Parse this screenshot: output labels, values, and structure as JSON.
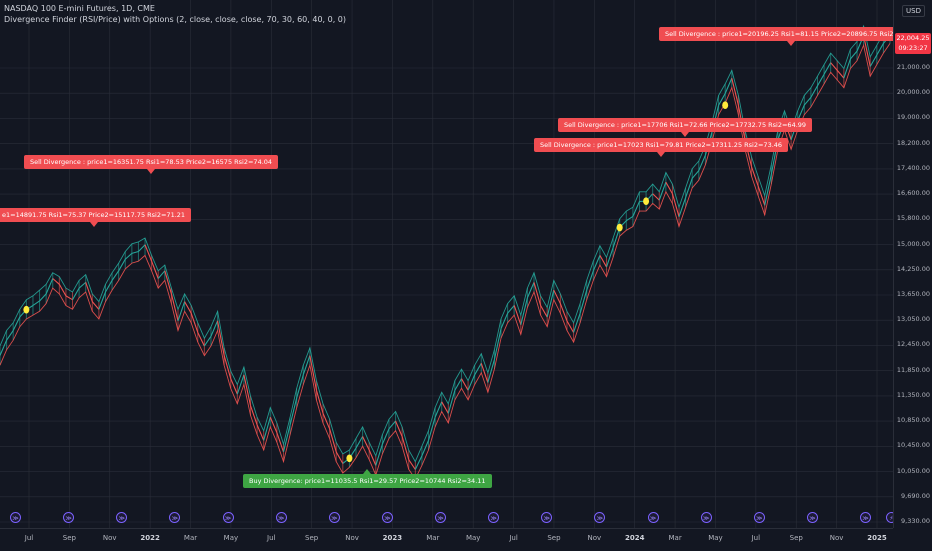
{
  "header": {
    "symbol_line": "NASDAQ 100 E-mini Futures, 1D, CME",
    "indicator_line": "Divergence Finder (RSI/Price) with Options (2, close, close, close, 70, 30, 60, 40, 0, 0)"
  },
  "price_axis": {
    "currency": "USD",
    "current_price": "22,004.25",
    "countdown": "09:23:27",
    "labels": [
      "21,000.00",
      "20,000.00",
      "19,000.00",
      "18,200.00",
      "17,400.00",
      "16,600.00",
      "15,800.00",
      "15,000.00",
      "14,250.00",
      "13,650.00",
      "13,050.00",
      "12,450.00",
      "11,850.00",
      "11,350.00",
      "10,850.00",
      "10,450.00",
      "10,050.00",
      "9,690.00",
      "9,330.00"
    ]
  },
  "time_axis": {
    "labels": [
      {
        "text": "Jul",
        "year": false
      },
      {
        "text": "Sep",
        "year": false
      },
      {
        "text": "Nov",
        "year": false
      },
      {
        "text": "2022",
        "year": true
      },
      {
        "text": "Mar",
        "year": false
      },
      {
        "text": "May",
        "year": false
      },
      {
        "text": "Jul",
        "year": false
      },
      {
        "text": "Sep",
        "year": false
      },
      {
        "text": "Nov",
        "year": false
      },
      {
        "text": "2023",
        "year": true
      },
      {
        "text": "Mar",
        "year": false
      },
      {
        "text": "May",
        "year": false
      },
      {
        "text": "Jul",
        "year": false
      },
      {
        "text": "Sep",
        "year": false
      },
      {
        "text": "Nov",
        "year": false
      },
      {
        "text": "2024",
        "year": true
      },
      {
        "text": "Mar",
        "year": false
      },
      {
        "text": "May",
        "year": false
      },
      {
        "text": "Jul",
        "year": false
      },
      {
        "text": "Sep",
        "year": false
      },
      {
        "text": "Nov",
        "year": false
      },
      {
        "text": "2025",
        "year": true
      }
    ]
  },
  "annotations": [
    {
      "kind": "sell",
      "text": "e1=14891.75   Rsi1=75.37  Price2=15117.75   Rsi2=71.21"
    },
    {
      "kind": "sell",
      "text": "Sell Divergence : price1=16351.75   Rsi1=78.53  Price2=16575   Rsi2=74.04"
    },
    {
      "kind": "buy",
      "text": "Buy Divergence: price1=11035.5   Rsi1=29.57  Price2=10744   Rsi2=34.11"
    },
    {
      "kind": "sell",
      "text": "Sell Divergence : price1=17023   Rsi1=79.81  Price2=17311.25   Rsi2=73.46"
    },
    {
      "kind": "sell",
      "text": "Sell Divergence : price1=17706   Rsi1=72.66  Price2=17732.75   Rsi2=64.99"
    },
    {
      "kind": "sell",
      "text": "Sell Divergence : price1=20196.25   Rsi1=81.15  Price2=20896.75   Rsi2=80.14"
    }
  ],
  "event_markers": {
    "glyph": "≫",
    "count": 17
  },
  "colors": {
    "background": "#131722",
    "grid": "#2a2e39",
    "up_line": "#26a69a",
    "down_line": "#ef5350",
    "sell_label": "#f04d51",
    "buy_label": "#3ea543",
    "marker_dot": "#ffeb3b",
    "price_tag": "#f23645"
  },
  "chart_data": {
    "type": "line",
    "series": [
      {
        "values": [
          13700,
          14100,
          14350,
          14700,
          14891.75,
          15000,
          15117.75,
          15300,
          15700,
          15550,
          15250,
          15150,
          15450,
          15600,
          15100,
          14900,
          15350,
          15650,
          15900,
          16200,
          16351.75,
          16400,
          16575,
          16150,
          15700,
          15900,
          15300,
          14600,
          15100,
          14800,
          14300,
          13950,
          14200,
          14600,
          13700,
          13100,
          12700,
          13200,
          12400,
          11900,
          11500,
          12100,
          11700,
          11200,
          11900,
          12600,
          13200,
          13700,
          12800,
          12200,
          11800,
          11200,
          10900,
          11035.5,
          11300,
          11600,
          11250,
          10850,
          11400,
          11800,
          12000,
          11600,
          11000,
          10744,
          11100,
          11500,
          12100,
          12500,
          12200,
          12800,
          13100,
          12800,
          13200,
          13500,
          13000,
          13600,
          14400,
          14800,
          15000,
          14500,
          15200,
          15600,
          15000,
          14700,
          15400,
          15050,
          14600,
          14300,
          14800,
          15400,
          15900,
          16300,
          16000,
          16500,
          17023,
          17200,
          17311.25,
          17700,
          17706,
          17900,
          17732.75,
          18200,
          17900,
          17300,
          17800,
          18300,
          18500,
          18900,
          19500,
          20196.25,
          20500,
          20896.75,
          20200,
          19300,
          18600,
          18100,
          17600,
          18400,
          19300,
          19800,
          19300,
          19800,
          20200,
          20400,
          20700,
          21000,
          21300,
          21100,
          20900,
          21400,
          21600,
          22000,
          21200,
          21500,
          21800,
          22004.25
        ],
        "high_values": [
          13950,
          14350,
          14550,
          14900,
          15150,
          15250,
          15400,
          15550,
          15850,
          15750,
          15450,
          15350,
          15650,
          15800,
          15300,
          15100,
          15550,
          15850,
          16100,
          16400,
          16600,
          16650,
          16750,
          16300,
          15900,
          16050,
          15450,
          14900,
          15300,
          15000,
          14550,
          14150,
          14450,
          14850,
          13900,
          13300,
          12950,
          13400,
          12650,
          12100,
          11750,
          12350,
          11950,
          11400,
          12100,
          12850,
          13450,
          13900,
          13050,
          12450,
          12050,
          11450,
          11150,
          11250,
          11550,
          11850,
          11450,
          11100,
          11650,
          12050,
          12250,
          11850,
          11250,
          10950,
          11350,
          11750,
          12350,
          12750,
          12450,
          13050,
          13350,
          13050,
          13450,
          13750,
          13250,
          13850,
          14650,
          15050,
          15250,
          14750,
          15450,
          15850,
          15250,
          14950,
          15650,
          15300,
          14850,
          14550,
          15050,
          15650,
          16150,
          16550,
          16250,
          16750,
          17250,
          17450,
          17550,
          17950,
          17950,
          18150,
          17950,
          18450,
          18150,
          17550,
          18050,
          18550,
          18750,
          19150,
          19750,
          20450,
          20750,
          21100,
          20450,
          19550,
          18850,
          18350,
          17850,
          18650,
          19550,
          20050,
          19550,
          20050,
          20450,
          20650,
          20950,
          21250,
          21550,
          21350,
          21150,
          21650,
          21850,
          22250,
          21450,
          21750,
          22050,
          22200
        ],
        "low_values": [
          13450,
          13850,
          14100,
          14450,
          14650,
          14750,
          14850,
          15050,
          15450,
          15300,
          15000,
          14900,
          15200,
          15350,
          14850,
          14650,
          15100,
          15400,
          15650,
          15950,
          16100,
          16150,
          16300,
          15900,
          15450,
          15650,
          15050,
          14350,
          14850,
          14550,
          14050,
          13700,
          13950,
          14350,
          13450,
          12850,
          12450,
          12950,
          12150,
          11650,
          11250,
          11850,
          11450,
          10950,
          11650,
          12350,
          12950,
          13450,
          12550,
          11950,
          11550,
          10950,
          10650,
          10800,
          11050,
          11350,
          11000,
          10600,
          11150,
          11550,
          11750,
          11350,
          10750,
          10500,
          10850,
          11250,
          11850,
          12250,
          11950,
          12550,
          12850,
          12550,
          12950,
          13250,
          12750,
          13350,
          14150,
          14550,
          14750,
          14250,
          14950,
          15350,
          14750,
          14450,
          15150,
          14800,
          14350,
          14050,
          14550,
          15150,
          15650,
          16050,
          15750,
          16250,
          16800,
          16950,
          17050,
          17450,
          17450,
          17650,
          17500,
          17950,
          17650,
          17050,
          17550,
          18050,
          18250,
          18650,
          19250,
          19950,
          20250,
          20650,
          19950,
          19050,
          18350,
          17850,
          17350,
          18150,
          19050,
          19550,
          19050,
          19550,
          19950,
          20150,
          20450,
          20750,
          21050,
          20850,
          20650,
          21150,
          21350,
          21750,
          20950,
          21250,
          21550,
          21800
        ]
      }
    ],
    "ylim": [
      9330,
      22200
    ],
    "grid": true,
    "divergence_dots": [
      {
        "index": 4,
        "value": 14891.75
      },
      {
        "index": 53,
        "value": 11035.5
      },
      {
        "index": 94,
        "value": 17023
      },
      {
        "index": 98,
        "value": 17706
      },
      {
        "index": 110,
        "value": 20196.25
      }
    ]
  }
}
